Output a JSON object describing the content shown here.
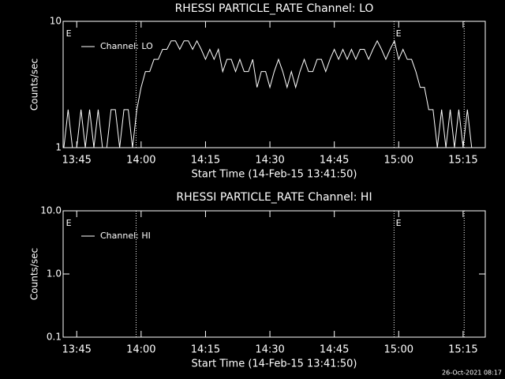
{
  "chart_data": [
    {
      "type": "line",
      "title": "RHESSI PARTICLE_RATE Channel: LO",
      "xlabel": "Start Time (14-Feb-15 13:41:50)",
      "ylabel": "Counts/sec",
      "log_y": true,
      "ylim": [
        1,
        10
      ],
      "yticks": [
        1,
        10
      ],
      "xlim": [
        "13:41:50",
        "15:20:10"
      ],
      "xticks": [
        "13:45",
        "14:00",
        "14:15",
        "14:30",
        "14:45",
        "15:00",
        "15:15"
      ],
      "vlines": [
        "13:58:50",
        "14:58:55",
        "15:15:15"
      ],
      "annotations": [
        {
          "text": "E",
          "x": "13:42:30"
        },
        {
          "text": "E",
          "x": "14:59:20"
        }
      ],
      "legend": "upper left",
      "x": [
        "13:42",
        "13:43",
        "13:44",
        "13:45",
        "13:46",
        "13:47",
        "13:48",
        "13:49",
        "13:50",
        "13:51",
        "13:52",
        "13:53",
        "13:54",
        "13:55",
        "13:56",
        "13:57",
        "13:58",
        "13:59",
        "14:00",
        "14:01",
        "14:02",
        "14:03",
        "14:04",
        "14:05",
        "14:06",
        "14:07",
        "14:08",
        "14:09",
        "14:10",
        "14:11",
        "14:12",
        "14:13",
        "14:14",
        "14:15",
        "14:16",
        "14:17",
        "14:18",
        "14:19",
        "14:20",
        "14:21",
        "14:22",
        "14:23",
        "14:24",
        "14:25",
        "14:26",
        "14:27",
        "14:28",
        "14:29",
        "14:30",
        "14:31",
        "14:32",
        "14:33",
        "14:34",
        "14:35",
        "14:36",
        "14:37",
        "14:38",
        "14:39",
        "14:40",
        "14:41",
        "14:42",
        "14:43",
        "14:44",
        "14:45",
        "14:46",
        "14:47",
        "14:48",
        "14:49",
        "14:50",
        "14:51",
        "14:52",
        "14:53",
        "14:54",
        "14:55",
        "14:56",
        "14:57",
        "14:58",
        "14:59",
        "15:00",
        "15:01",
        "15:02",
        "15:03",
        "15:04",
        "15:05",
        "15:06",
        "15:07",
        "15:08",
        "15:09",
        "15:10",
        "15:11",
        "15:12",
        "15:13",
        "15:14",
        "15:15",
        "15:16",
        "15:17"
      ],
      "series": [
        {
          "name": "Channel: LO",
          "color": "#ffffff",
          "values": [
            1,
            2,
            1,
            1,
            2,
            1,
            2,
            1,
            2,
            1,
            1,
            2,
            2,
            1,
            2,
            2,
            1,
            2,
            3,
            4,
            4,
            5,
            5,
            6,
            6,
            7,
            7,
            6,
            7,
            7,
            6,
            7,
            6,
            5,
            6,
            5,
            6,
            4,
            5,
            5,
            4,
            5,
            4,
            4,
            5,
            3,
            4,
            4,
            3,
            4,
            5,
            4,
            3,
            4,
            3,
            4,
            5,
            4,
            4,
            5,
            5,
            4,
            5,
            6,
            5,
            6,
            5,
            6,
            5,
            6,
            6,
            5,
            6,
            7,
            6,
            5,
            6,
            7,
            5,
            6,
            5,
            5,
            4,
            3,
            3,
            2,
            2,
            1,
            2,
            1,
            2,
            1,
            2,
            1,
            2,
            1
          ]
        }
      ]
    },
    {
      "type": "line",
      "title": "RHESSI PARTICLE_RATE Channel: HI",
      "xlabel": "Start Time (14-Feb-15 13:41:50)",
      "ylabel": "Counts/sec",
      "log_y": true,
      "ylim": [
        0.1,
        10
      ],
      "yticks": [
        0.1,
        {
          "value": 1,
          "label": "1.0"
        },
        {
          "value": 10,
          "label": "10.0"
        }
      ],
      "xlim": [
        "13:41:50",
        "15:20:10"
      ],
      "xticks": [
        "13:45",
        "14:00",
        "14:15",
        "14:30",
        "14:45",
        "15:00",
        "15:15"
      ],
      "vlines": [
        "13:58:50",
        "14:58:55",
        "15:15:15"
      ],
      "annotations": [
        {
          "text": "E",
          "x": "13:42:30"
        },
        {
          "text": "E",
          "x": "14:59:20"
        }
      ],
      "legend": "upper left",
      "x": [],
      "series": [
        {
          "name": "Channel: HI",
          "color": "#ffffff",
          "values": []
        }
      ]
    }
  ],
  "footer": "26-Oct-2021 08:17"
}
